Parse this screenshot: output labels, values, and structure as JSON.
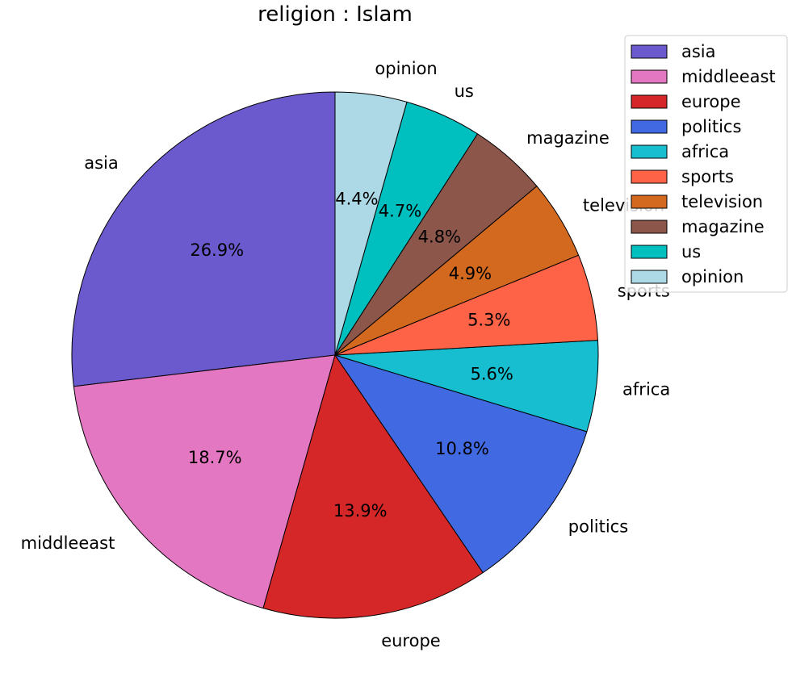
{
  "chart_data": {
    "type": "pie",
    "title": "religion : Islam",
    "start_angle_deg": 90,
    "direction": "counterclockwise",
    "legend_position": "top-right",
    "slices": [
      {
        "label": "asia",
        "value": 26.9,
        "pct_label": "26.9%",
        "color": "#6a5acd"
      },
      {
        "label": "middleeast",
        "value": 18.7,
        "pct_label": "18.7%",
        "color": "#e377c2"
      },
      {
        "label": "europe",
        "value": 13.9,
        "pct_label": "13.9%",
        "color": "#d62728"
      },
      {
        "label": "politics",
        "value": 10.8,
        "pct_label": "10.8%",
        "color": "#4169e1"
      },
      {
        "label": "africa",
        "value": 5.6,
        "pct_label": "5.6%",
        "color": "#17becf"
      },
      {
        "label": "sports",
        "value": 5.3,
        "pct_label": "5.3%",
        "color": "#ff6347"
      },
      {
        "label": "television",
        "value": 4.9,
        "pct_label": "4.9%",
        "color": "#d2691e"
      },
      {
        "label": "magazine",
        "value": 4.8,
        "pct_label": "4.8%",
        "color": "#8c564b"
      },
      {
        "label": "us",
        "value": 4.7,
        "pct_label": "4.7%",
        "color": "#00bfbf"
      },
      {
        "label": "opinion",
        "value": 4.4,
        "pct_label": "4.4%",
        "color": "#add8e6"
      }
    ]
  }
}
